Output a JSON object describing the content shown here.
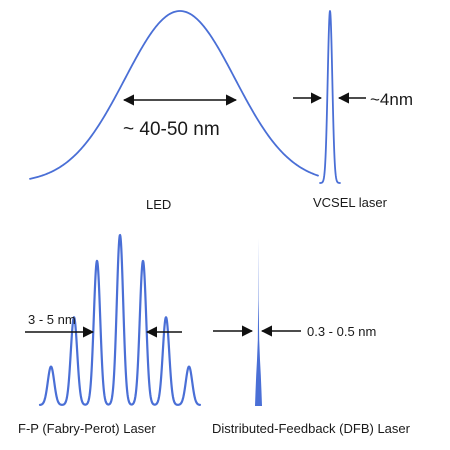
{
  "colors": {
    "curve": "#4a6fd6",
    "arrow": "#111111",
    "text": "#1a1a1a",
    "background": "#ffffff"
  },
  "panels": {
    "led": {
      "name": "LED",
      "width_label": "~ 40-50 nm"
    },
    "vcsel": {
      "name": "VCSEL laser",
      "width_label": "~4nm"
    },
    "fp": {
      "name": "F-P (Fabry-Perot) Laser",
      "width_label": "3 - 5 nm"
    },
    "dfb": {
      "name": "Distributed-Feedback (DFB) Laser",
      "width_label": "0.3 - 0.5 nm"
    }
  }
}
